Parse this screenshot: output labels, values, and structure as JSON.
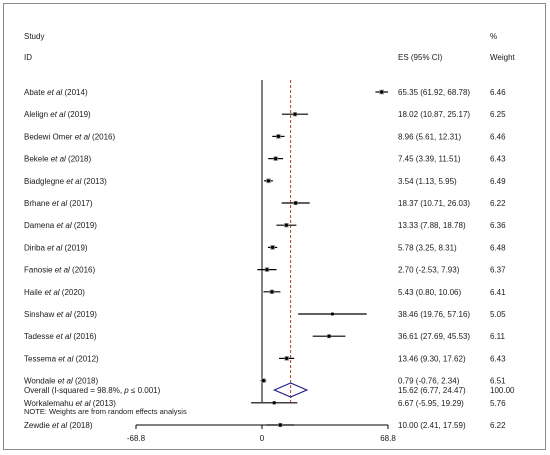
{
  "chart_data": {
    "type": "forest",
    "headers": {
      "study": "Study",
      "id": "ID",
      "es": "ES (95% CI)",
      "pct": "%",
      "weight": "Weight"
    },
    "x_ticks": [
      -68.8,
      0,
      68.8
    ],
    "x_tick_labels": [
      "-68.8",
      "0",
      "68.8"
    ],
    "xlim": [
      -68.8,
      68.8
    ],
    "overall_line": 15.62,
    "studies": [
      {
        "author": "Abate",
        "etal": "et al",
        "year": "(2014)",
        "es": 65.35,
        "lo": 61.92,
        "hi": 68.78,
        "es_label": "65.35 (61.92, 68.78)",
        "weight": "6.46",
        "weight_value": 6.46
      },
      {
        "author": "Alelign",
        "etal": "et al",
        "year": "(2019)",
        "es": 18.02,
        "lo": 10.87,
        "hi": 25.17,
        "es_label": "18.02 (10.87, 25.17)",
        "weight": "6.25",
        "weight_value": 6.25
      },
      {
        "author": "Bedewi Omer",
        "etal": "et al",
        "year": "(2016)",
        "es": 8.96,
        "lo": 5.61,
        "hi": 12.31,
        "es_label": "8.96 (5.61, 12.31)",
        "weight": "6.46",
        "weight_value": 6.46
      },
      {
        "author": "Bekele",
        "etal": "et al",
        "year": "(2018)",
        "es": 7.45,
        "lo": 3.39,
        "hi": 11.51,
        "es_label": "7.45 (3.39, 11.51)",
        "weight": "6.43",
        "weight_value": 6.43
      },
      {
        "author": "Biadglegne",
        "etal": "et al",
        "year": "(2013)",
        "es": 3.54,
        "lo": 1.13,
        "hi": 5.95,
        "es_label": "3.54 (1.13, 5.95)",
        "weight": "6.49",
        "weight_value": 6.49
      },
      {
        "author": "Brhane",
        "etal": "et al",
        "year": "(2017)",
        "es": 18.37,
        "lo": 10.71,
        "hi": 26.03,
        "es_label": "18.37 (10.71, 26.03)",
        "weight": "6.22",
        "weight_value": 6.22
      },
      {
        "author": "Damena",
        "etal": "et al",
        "year": "(2019)",
        "es": 13.33,
        "lo": 7.88,
        "hi": 18.78,
        "es_label": "13.33 (7.88, 18.78)",
        "weight": "6.36",
        "weight_value": 6.36
      },
      {
        "author": "Diriba",
        "etal": "et al",
        "year": "(2019)",
        "es": 5.78,
        "lo": 3.25,
        "hi": 8.31,
        "es_label": "5.78 (3.25, 8.31)",
        "weight": "6.48",
        "weight_value": 6.48
      },
      {
        "author": "Fanosie",
        "etal": "et al",
        "year": "(2016)",
        "es": 2.7,
        "lo": -2.53,
        "hi": 7.93,
        "es_label": "2.70 (-2.53, 7.93)",
        "weight": "6.37",
        "weight_value": 6.37
      },
      {
        "author": "Haile",
        "etal": "et al",
        "year": "(2020)",
        "es": 5.43,
        "lo": 0.8,
        "hi": 10.06,
        "es_label": "5.43 (0.80, 10.06)",
        "weight": "6.41",
        "weight_value": 6.41
      },
      {
        "author": "Sinshaw",
        "etal": "et al",
        "year": "(2019)",
        "es": 38.46,
        "lo": 19.76,
        "hi": 57.16,
        "es_label": "38.46 (19.76, 57.16)",
        "weight": "5.05",
        "weight_value": 5.05
      },
      {
        "author": "Tadesse",
        "etal": "et al",
        "year": "(2016)",
        "es": 36.61,
        "lo": 27.69,
        "hi": 45.53,
        "es_label": "36.61 (27.69, 45.53)",
        "weight": "6.11",
        "weight_value": 6.11
      },
      {
        "author": "Tessema",
        "etal": "et al",
        "year": "(2012)",
        "es": 13.46,
        "lo": 9.3,
        "hi": 17.62,
        "es_label": "13.46 (9.30, 17.62)",
        "weight": "6.43",
        "weight_value": 6.43
      },
      {
        "author": "Wondale",
        "etal": "et al",
        "year": "(2018)",
        "es": 0.79,
        "lo": -0.76,
        "hi": 2.34,
        "es_label": "0.79 (-0.76, 2.34)",
        "weight": "6.51",
        "weight_value": 6.51
      },
      {
        "author": "Workalemahu",
        "etal": "et al",
        "year": "(2013)",
        "es": 6.67,
        "lo": -5.95,
        "hi": 19.29,
        "es_label": "6.67 (-5.95, 19.29)",
        "weight": "5.76",
        "weight_value": 5.76
      },
      {
        "author": "Zewdie",
        "etal": "et al",
        "year": "(2018)",
        "es": 10.0,
        "lo": 2.41,
        "hi": 17.59,
        "es_label": "10.00 (2.41, 17.59)",
        "weight": "6.22",
        "weight_value": 6.22
      }
    ],
    "overall": {
      "label_prefix": "Overall (I-squared = 98.8%, ",
      "label_p": "p",
      "label_suffix": " ≤ 0.001)",
      "es": 15.62,
      "lo": 6.77,
      "hi": 24.47,
      "es_label": "15.62 (6.77, 24.47)",
      "weight": "100.00"
    },
    "note": "NOTE: Weights are from random effects analysis",
    "colors": {
      "marker": "#000000",
      "box": "#8c8c8c",
      "diamond": "#1f1f8f",
      "overall_line": "#b03a2e",
      "axis": "#000000"
    }
  }
}
